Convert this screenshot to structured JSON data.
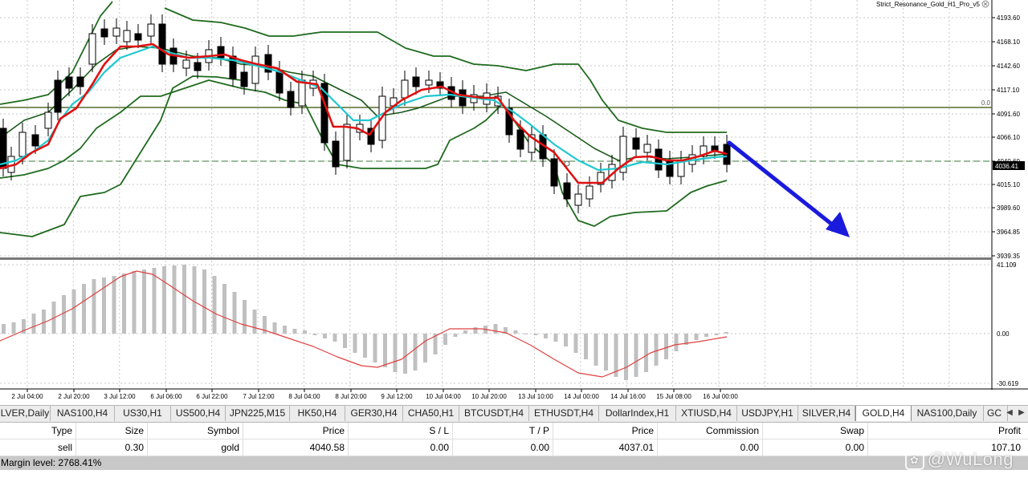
{
  "chart": {
    "indicator_label": "Strict_Resonance_Gold_H1_Pro_v5",
    "close_icon": "close-icon",
    "price_axis": [
      "4193.60",
      "4168.10",
      "4142.60",
      "4117.10",
      "4091.60",
      "4066.10",
      "4040.60",
      "4015.10",
      "3989.60",
      "3964.85",
      "3939.35"
    ],
    "current_price": "4036.41",
    "level_label": "0.0",
    "osc_axis": [
      "41.109",
      "0.00",
      "-30.619"
    ],
    "time_axis": [
      "2 Jul 04:00",
      "2 Jul 20:00",
      "3 Jul 12:00",
      "6 Jul 06:00",
      "6 Jul 22:00",
      "7 Jul 12:00",
      "8 Jul 04:00",
      "8 Jul 20:00",
      "9 Jul 12:00",
      "10 Jul 04:00",
      "10 Jul 20:00",
      "13 Jul 10:00",
      "14 Jul 00:00",
      "14 Jul 16:00",
      "15 Jul 08:00",
      "16 Jul 00:00"
    ],
    "colors": {
      "band": "#1f6b1f",
      "fast_ma": "#e01010",
      "slow_ma": "#20c8d0",
      "histogram": "#c0c0c0",
      "signal": "#e04040",
      "arrow": "#1a1adc",
      "level": "#556b2f"
    }
  },
  "tabs": {
    "items": [
      "LVER,Daily",
      "NAS100,H4",
      "US30,H1",
      "US500,H4",
      "JPN225,M15",
      "HK50,H4",
      "GER30,H4",
      "CHA50,H1",
      "BTCUSDT,H4",
      "ETHUSDT,H4",
      "DollarIndex,H1",
      "XTIUSD,H4",
      "USDJPY,H1",
      "SILVER,H4",
      "GOLD,H4",
      "NAS100,Daily",
      "GC"
    ],
    "active": "GOLD,H4",
    "prev_icon": "chevron-left-icon",
    "next_icon": "chevron-right-icon"
  },
  "trade_table": {
    "headers": {
      "type": "Type",
      "size": "Size",
      "symbol": "Symbol",
      "open_price": "Price",
      "sl": "S / L",
      "tp": "T / P",
      "price": "Price",
      "commission": "Commission",
      "swap": "Swap",
      "profit": "Profit"
    },
    "row": {
      "type": "sell",
      "size": "0.30",
      "symbol": "gold",
      "open_price": "4040.58",
      "sl": "0.00",
      "tp": "0.00",
      "price": "4037.01",
      "commission": "0.00",
      "swap": "0.00",
      "profit": "107.10"
    },
    "margin_level": "Margin level: 2768.41%"
  },
  "watermark": {
    "text": "@WuLong"
  }
}
